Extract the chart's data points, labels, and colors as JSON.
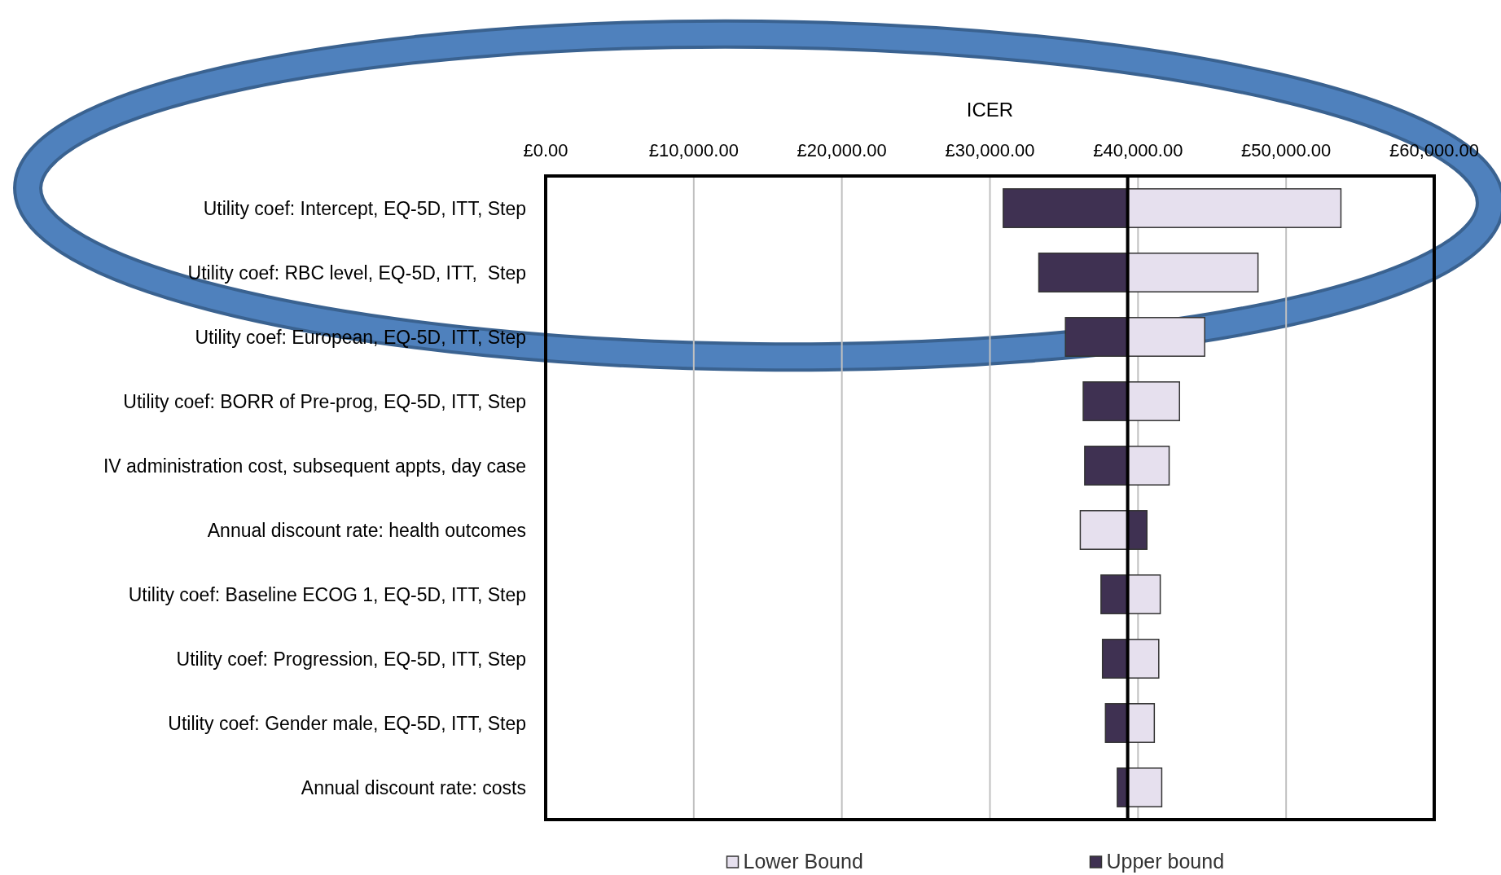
{
  "chart_data": {
    "type": "bar",
    "orientation": "horizontal",
    "xlabel": "ICER",
    "categories": [
      "Utility coef: Intercept, EQ-5D, ITT, Step",
      "Utility coef: RBC level, EQ-5D, ITT,  Step",
      "Utility coef: European, EQ-5D, ITT, Step",
      "Utility coef: BORR of Pre-prog, EQ-5D, ITT, Step",
      "IV administration cost, subsequent appts, day case",
      "Annual discount rate: health outcomes",
      "Utility coef: Baseline ECOG 1, EQ-5D, ITT, Step",
      "Utility coef: Progression, EQ-5D, ITT, Step",
      "Utility coef: Gender male, EQ-5D, ITT, Step",
      "Annual discount rate: costs"
    ],
    "series": [
      {
        "name": "Lower Bound",
        "color": "#e6e0ee",
        "base": [
          39300,
          39300,
          39300,
          39300,
          39300,
          36100,
          39300,
          39300,
          39300,
          39300
        ],
        "values": [
          14400,
          8800,
          5200,
          3500,
          2800,
          3200,
          2200,
          2100,
          1800,
          2300
        ]
      },
      {
        "name": "Upper bound",
        "color": "#3f3152",
        "base": [
          30900,
          33300,
          35100,
          36300,
          36400,
          39300,
          37500,
          37600,
          37800,
          38600
        ],
        "values": [
          8400,
          6000,
          4200,
          3000,
          2900,
          1300,
          1800,
          1700,
          1500,
          700
        ]
      }
    ],
    "xlim": [
      0,
      60000
    ],
    "xticks": [
      {
        "value": 0,
        "label": "£0.00"
      },
      {
        "value": 10000,
        "label": "£10,000.00"
      },
      {
        "value": 20000,
        "label": "£20,000.00"
      },
      {
        "value": 30000,
        "label": "£30,000.00"
      },
      {
        "value": 40000,
        "label": "£40,000.00"
      },
      {
        "value": 50000,
        "label": "£50,000.00"
      },
      {
        "value": 60000,
        "label": "£60,000.00"
      }
    ],
    "grid": "x",
    "legend": "bottom",
    "ref_lines": [
      {
        "axis": "x",
        "value": 39300,
        "color": "#000000"
      }
    ]
  }
}
